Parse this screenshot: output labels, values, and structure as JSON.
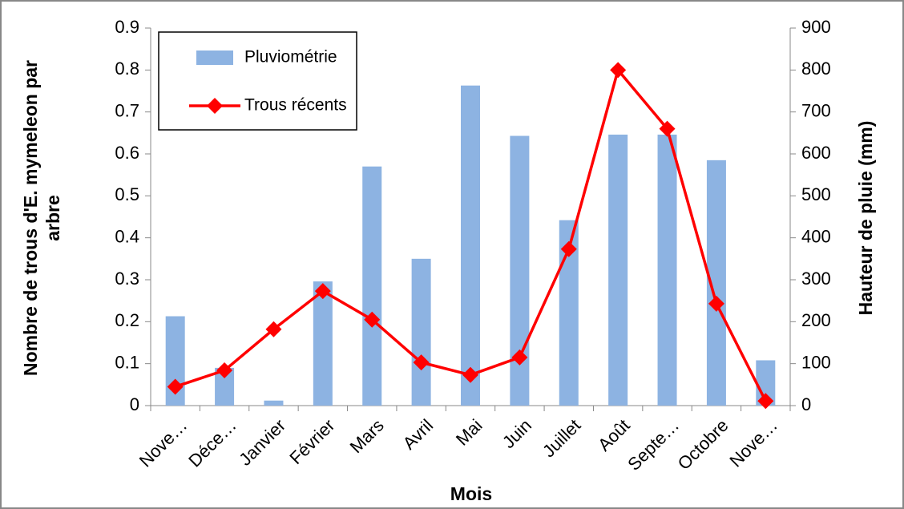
{
  "chart_data": {
    "type": "bar_line",
    "categories": [
      "Nove…",
      "Déce…",
      "Janvier",
      "Février",
      "Mars",
      "Avril",
      "Mai",
      "Juin",
      "Juillet",
      "Août",
      "Septe…",
      "Octobre",
      "Nove…"
    ],
    "series": [
      {
        "name": "Pluviométrie",
        "type": "bar",
        "axis": "y2",
        "color": "#8db3e2",
        "values": [
          213,
          90,
          12,
          296,
          570,
          350,
          763,
          643,
          442,
          646,
          646,
          585,
          108
        ]
      },
      {
        "name": "Trous récents",
        "type": "line",
        "axis": "y",
        "color": "#ff0000",
        "values": [
          0.045,
          0.084,
          0.182,
          0.273,
          0.205,
          0.103,
          0.073,
          0.115,
          0.373,
          0.8,
          0.66,
          0.243,
          0.011
        ]
      }
    ],
    "xlabel": "Mois",
    "ylabel": [
      "Nombre de trous d'E.  mymeleon par",
      "arbre"
    ],
    "y2label": "Hauteur de pluie (mm)",
    "ylim": [
      0,
      0.9
    ],
    "yticks": [
      0,
      0.1,
      0.2,
      0.3,
      0.4,
      0.5,
      0.6,
      0.7,
      0.8,
      0.9
    ],
    "y2lim": [
      0,
      900
    ],
    "y2ticks": [
      0,
      100,
      200,
      300,
      400,
      500,
      600,
      700,
      800,
      900
    ],
    "legend": "top-left"
  }
}
